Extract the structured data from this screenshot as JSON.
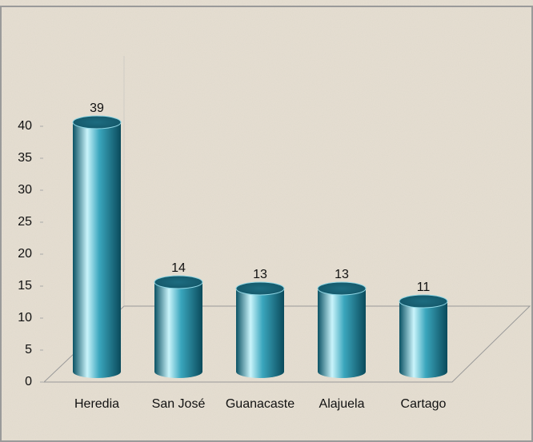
{
  "chart_data": {
    "type": "bar",
    "categories": [
      "Heredia",
      "San José",
      "Guanacaste",
      "Alajuela",
      "Cartago"
    ],
    "values": [
      39,
      14,
      13,
      13,
      11
    ],
    "color": "#1a8aa3",
    "ylim": [
      0,
      40
    ],
    "yticks": [
      0,
      5,
      10,
      15,
      20,
      25,
      30,
      35,
      40
    ],
    "grid": false
  }
}
